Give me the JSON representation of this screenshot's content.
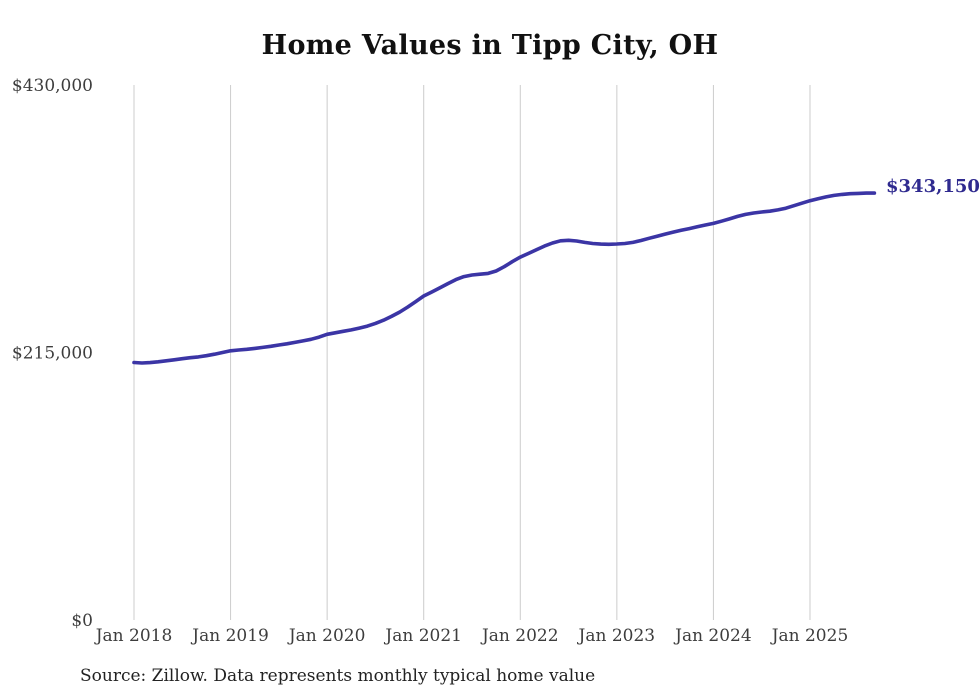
{
  "title": "Home Values in Tipp City, OH",
  "end_label": "$343,150",
  "source_note": "Source: Zillow. Data represents monthly typical home value",
  "colors": {
    "background": "#ffffff",
    "line": "#3b35a5",
    "end_label_text": "#2f2a8f",
    "gridline": "#cccccc",
    "axis_text": "#3d3d3d",
    "title_text": "#111111",
    "source_text": "#222222"
  },
  "chart_data": {
    "type": "line",
    "title": "Home Values in Tipp City, OH",
    "xlabel": "",
    "ylabel": "",
    "x_start": "2018-01",
    "x_end": "2025-09",
    "x_interval": "monthly",
    "x_tick_labels": [
      "Jan 2018",
      "Jan 2019",
      "Jan 2020",
      "Jan 2021",
      "Jan 2022",
      "Jan 2023",
      "Jan 2024",
      "Jan 2025"
    ],
    "x_tick_month_indices": [
      0,
      12,
      24,
      36,
      48,
      60,
      72,
      84
    ],
    "y_tick_labels": [
      "$0",
      "$215,000",
      "$430,000"
    ],
    "y_tick_values": [
      0,
      215000,
      430000
    ],
    "ylim": [
      0,
      430000
    ],
    "grid": "vertical-only",
    "legend": "none",
    "last_value": 343150,
    "last_value_label": "$343,150",
    "series": [
      {
        "name": "Monthly typical home value",
        "values": [
          207000,
          206600,
          206900,
          207500,
          208300,
          209100,
          210000,
          210800,
          211500,
          212400,
          213600,
          215000,
          216400,
          217000,
          217600,
          218300,
          219100,
          220000,
          221000,
          222000,
          223100,
          224300,
          225600,
          227400,
          229600,
          230800,
          232000,
          233200,
          234600,
          236200,
          238400,
          241000,
          244000,
          247500,
          251500,
          255900,
          260400,
          263600,
          266900,
          270400,
          273600,
          276000,
          277300,
          277900,
          278600,
          280500,
          284000,
          288000,
          291700,
          294600,
          297600,
          300500,
          303000,
          304800,
          305200,
          304600,
          303500,
          302600,
          302100,
          302000,
          302200,
          302600,
          303500,
          305000,
          306800,
          308500,
          310200,
          311800,
          313200,
          314600,
          316000,
          317500,
          318800,
          320500,
          322400,
          324400,
          326000,
          327100,
          327900,
          328600,
          329600,
          331000,
          333000,
          335000,
          337000,
          338600,
          340100,
          341300,
          342100,
          342600,
          342900,
          343100,
          343150
        ]
      }
    ]
  }
}
